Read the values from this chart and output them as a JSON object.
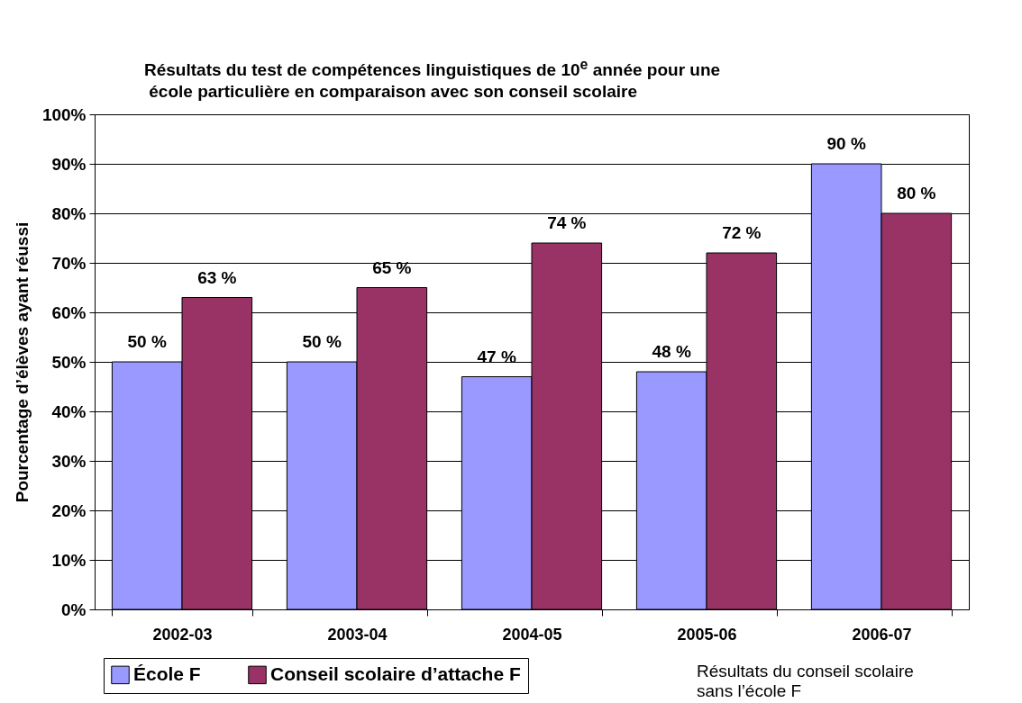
{
  "chart_data": {
    "type": "bar",
    "title": "Résultats du test de compétences linguistiques de 10$^{e}$ année pour une\n école particulière en comparaison avec son conseil scolaire",
    "ylabel": "Pourcentage d’élèves ayant réussi",
    "categories": [
      "2002-03",
      "2003-04",
      "2004-05",
      "2005-06",
      "2006-07"
    ],
    "series": [
      {
        "name": "École F",
        "color": "#9999ff",
        "values": [
          50,
          50,
          47,
          48,
          90
        ],
        "value_labels": [
          "50 %",
          "50 %",
          "47 %",
          "48 %",
          "90 %"
        ]
      },
      {
        "name": "Conseil scolaire d’attache F",
        "color": "#993366",
        "values": [
          63,
          65,
          74,
          72,
          80
        ],
        "value_labels": [
          "63 %",
          "65 %",
          "74 %",
          "72 %",
          "80 %"
        ]
      }
    ],
    "ylim": [
      0,
      100
    ],
    "yticks": [
      {
        "value": 0,
        "label": "0%"
      },
      {
        "value": 10,
        "label": "10%"
      },
      {
        "value": 20,
        "label": "20%"
      },
      {
        "value": 30,
        "label": "30%"
      },
      {
        "value": 40,
        "label": "40%"
      },
      {
        "value": 50,
        "label": "50%"
      },
      {
        "value": 60,
        "label": "60%"
      },
      {
        "value": 70,
        "label": "70%"
      },
      {
        "value": 80,
        "label": "80%"
      },
      {
        "value": 90,
        "label": "90%"
      },
      {
        "value": 100,
        "label": "100%"
      }
    ],
    "grid": "y",
    "legend": "bottom left",
    "annotations": [
      "Résultats du conseil scolaire\nsans l’école F"
    ]
  }
}
